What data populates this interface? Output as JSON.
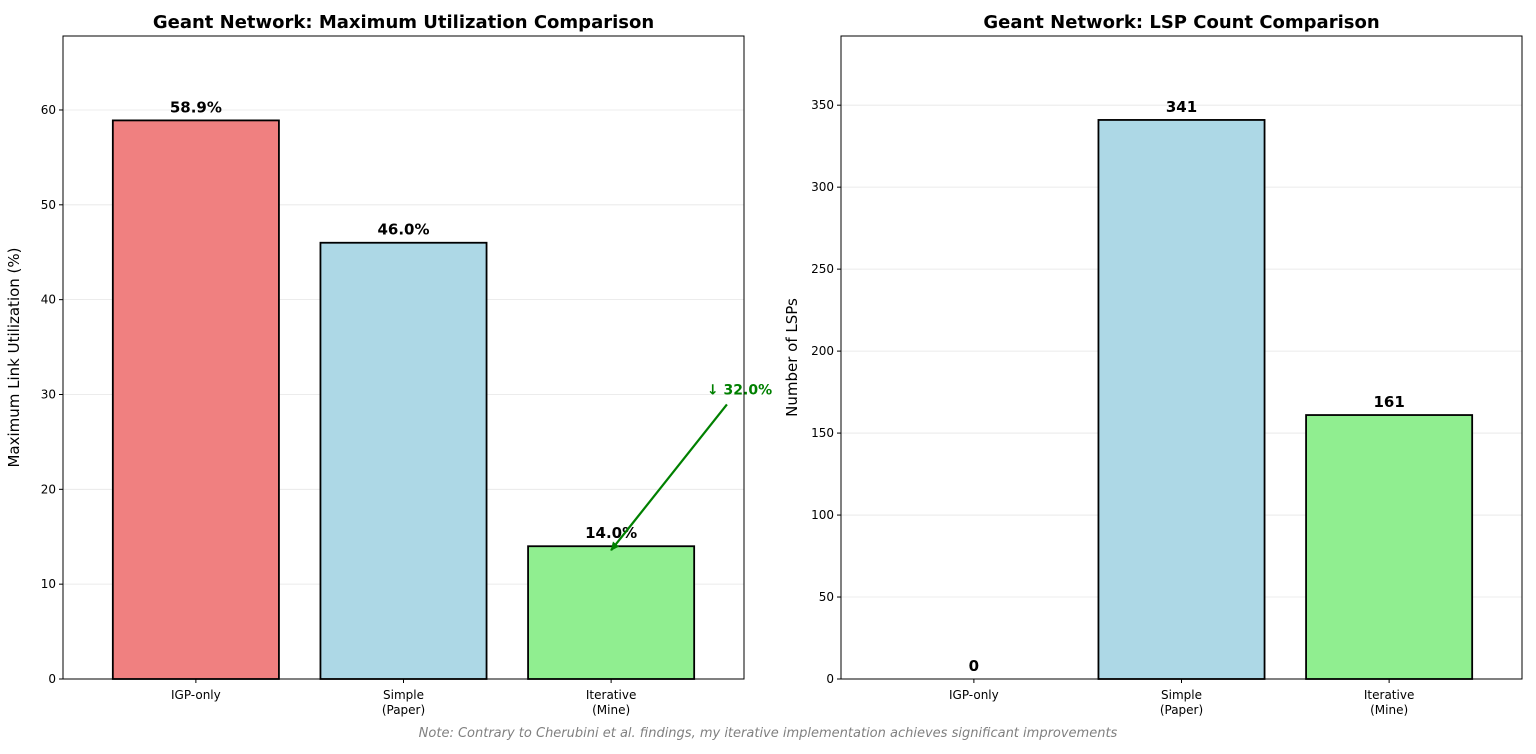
{
  "chart_data": [
    {
      "type": "bar",
      "title": "Geant Network: Maximum Utilization Comparison",
      "ylabel": "Maximum Link Utilization (%)",
      "xlabel": "",
      "categories": [
        "IGP-only",
        "Simple\n(Paper)",
        "Iterative\n(Mine)"
      ],
      "values": [
        58.9,
        46.0,
        14.0
      ],
      "value_labels": [
        "58.9%",
        "46.0%",
        "14.0%"
      ],
      "colors": [
        "#f08080",
        "#add8e6",
        "#90ee90"
      ],
      "ylim": [
        0,
        67.8
      ],
      "yticks": [
        0,
        10,
        20,
        30,
        40,
        50,
        60
      ],
      "grid": "y",
      "annotation": {
        "text": "↓ 32.0%",
        "color": "#008000",
        "arrow_from": [
          2.5,
          30
        ],
        "arrow_to": [
          2.0,
          14.0
        ]
      }
    },
    {
      "type": "bar",
      "title": "Geant Network: LSP Count Comparison",
      "ylabel": "Number of LSPs",
      "xlabel": "",
      "categories": [
        "IGP-only",
        "Simple\n(Paper)",
        "Iterative\n(Mine)"
      ],
      "values": [
        0,
        341,
        161
      ],
      "value_labels": [
        "0",
        "341",
        "161"
      ],
      "colors": [
        "#f08080",
        "#add8e6",
        "#90ee90"
      ],
      "ylim": [
        0,
        392.2
      ],
      "yticks": [
        0,
        50,
        100,
        150,
        200,
        250,
        300,
        350
      ],
      "grid": "y"
    }
  ],
  "note": "Note: Contrary to Cherubini et al. findings, my iterative implementation achieves significant improvements"
}
